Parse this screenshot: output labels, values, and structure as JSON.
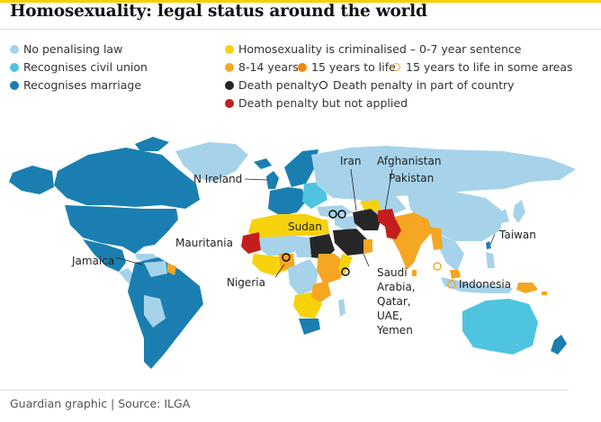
{
  "header": {
    "title": "Homosexuality: legal status around the world"
  },
  "legend": [
    {
      "key": "no_penalising",
      "label": "No penalising law",
      "color": "#a6d3ea",
      "kind": "dot"
    },
    {
      "key": "civil_union",
      "label": "Recognises civil union",
      "color": "#4ec4e0",
      "kind": "dot"
    },
    {
      "key": "marriage",
      "label": "Recognises marriage",
      "color": "#1a7fb0",
      "kind": "dot"
    },
    {
      "key": "crim_0_7",
      "label": "Homosexuality is criminalised – 0-7 year sentence",
      "color": "#f6d20c",
      "kind": "dot"
    },
    {
      "key": "crim_8_14",
      "label": "8-14 years",
      "color": "#f5a623",
      "kind": "dot"
    },
    {
      "key": "crim_15_life",
      "label": "15 years to life",
      "color": "#f08a0f",
      "kind": "dot"
    },
    {
      "key": "crim_15_life_some",
      "label": "15 years to life in some areas",
      "color": "#f5a623",
      "kind": "ring"
    },
    {
      "key": "death",
      "label": "Death penalty",
      "color": "#262626",
      "kind": "dot"
    },
    {
      "key": "death_part",
      "label": "Death penalty in part of country",
      "color": "#000000",
      "kind": "ring"
    },
    {
      "key": "death_not_applied",
      "label": "Death penalty but not applied",
      "color": "#c41d1d",
      "kind": "dot"
    }
  ],
  "map_labels": {
    "n_ireland": "N Ireland",
    "iran": "Iran",
    "afghanistan": "Afghanistan",
    "pakistan": "Pakistan",
    "taiwan": "Taiwan",
    "sudan": "Sudan",
    "mauritania": "Mauritania",
    "jamaica": "Jamaica",
    "nigeria": "Nigeria",
    "saudi_1": "Saudi",
    "saudi_2": "Arabia,",
    "saudi_3": "Qatar,",
    "saudi_4": "UAE,",
    "saudi_5": "Yemen",
    "indonesia": "Indonesia"
  },
  "colors": {
    "accent_bar": "#f5d000",
    "ocean": "#ffffff",
    "no_penalising": "#a6d3ea",
    "civil_union": "#4ec4e0",
    "marriage": "#1a7fb0",
    "crim_0_7": "#f6d20c",
    "crim_8_14": "#f5a623",
    "crim_15_life": "#f08a0f",
    "death": "#262626",
    "death_not_applied": "#c41d1d"
  },
  "footer": {
    "credit": "Guardian graphic | Source: ILGA"
  }
}
